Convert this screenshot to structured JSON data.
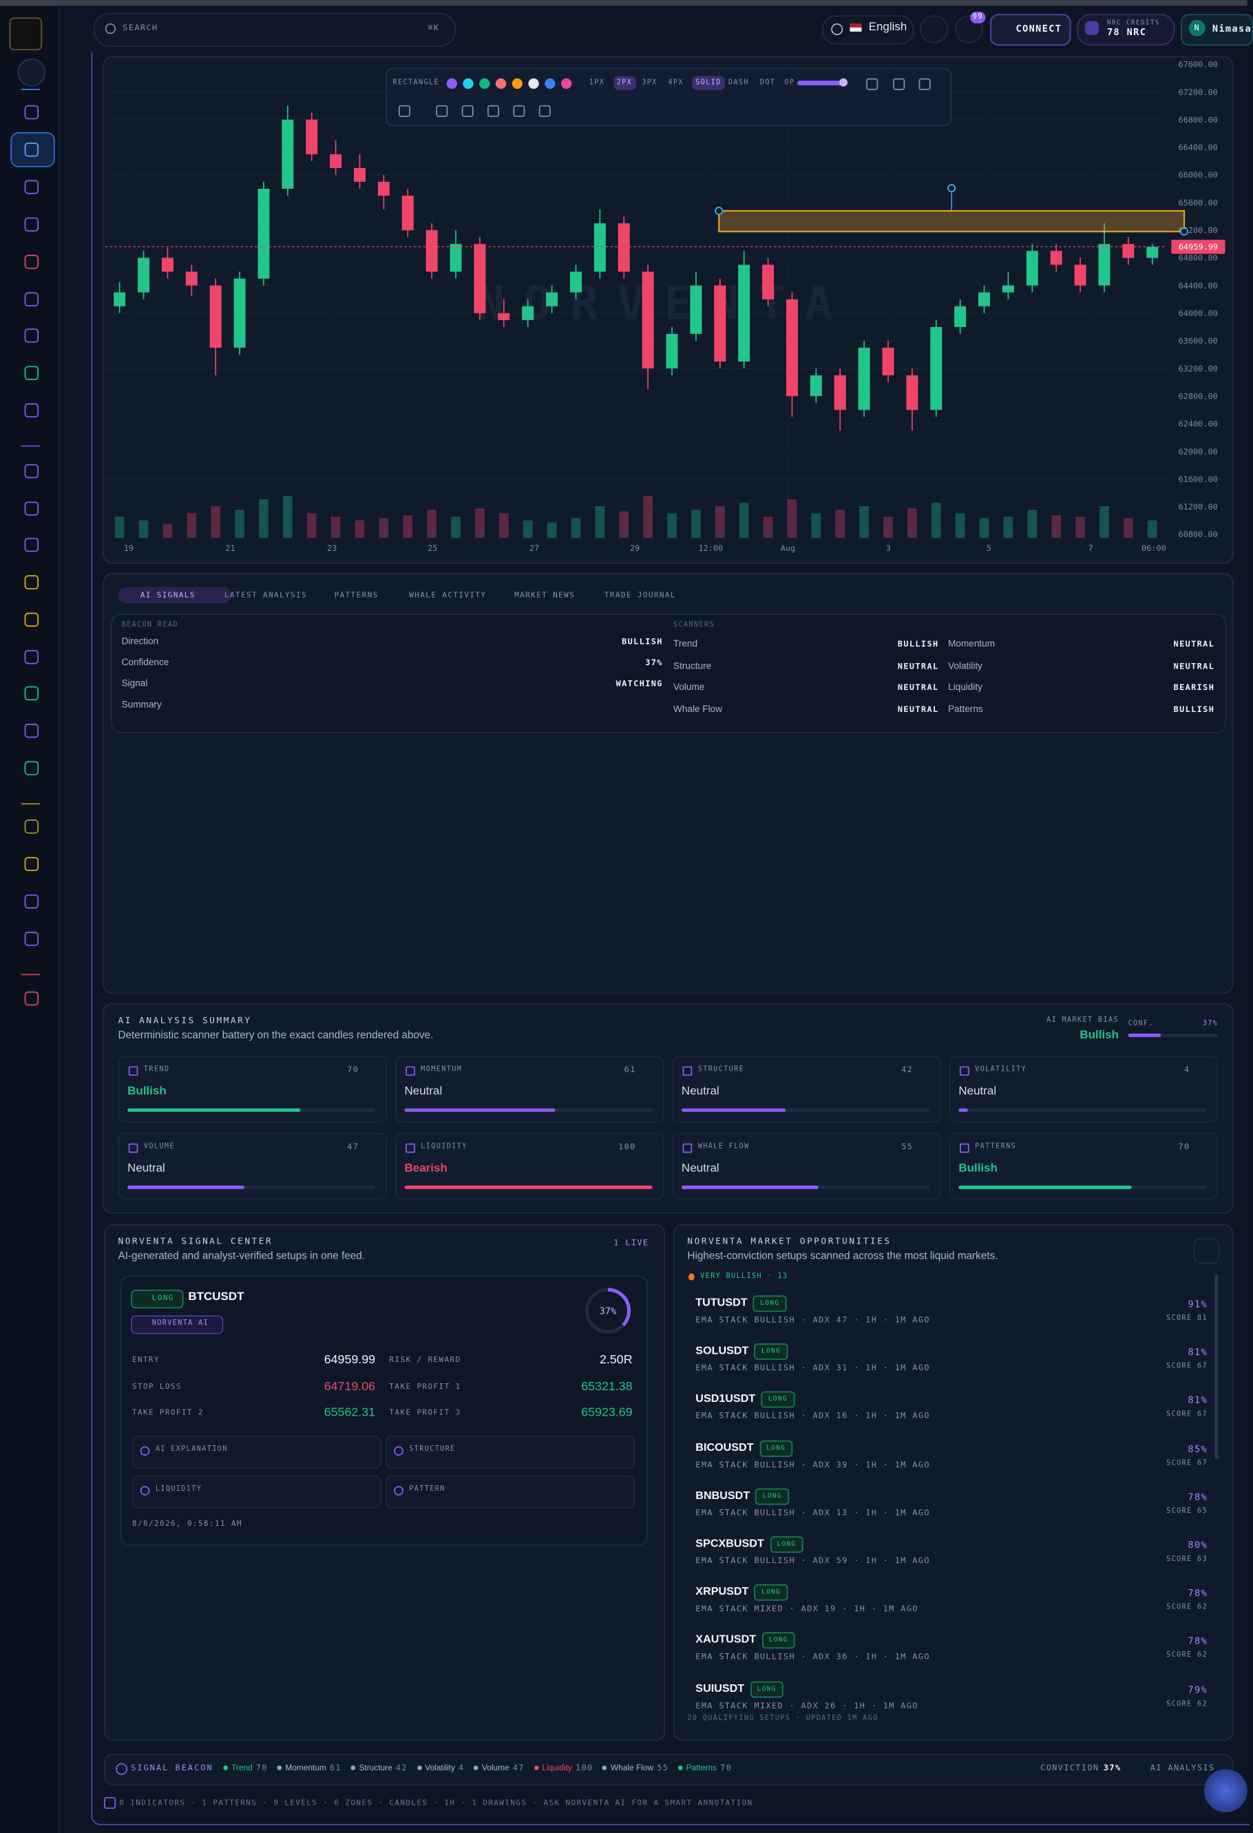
{
  "header": {
    "search": "SEARCH",
    "shortcut": "⌘K",
    "language": "English",
    "notifications": "99",
    "connect": "CONNECT",
    "credits_label": "NRC CREDITS",
    "credits": "78 NRC",
    "user_initial": "N",
    "user": "Nimasa"
  },
  "toolbar": {
    "tool": "RECTANGLE",
    "colors": [
      "#8b5cf6",
      "#22d3ee",
      "#10b981",
      "#f87171",
      "#f59e0b",
      "#e5e7eb",
      "#3b82f6",
      "#ec4899"
    ],
    "widths": [
      "1PX",
      "2PX",
      "3PX",
      "4PX"
    ],
    "styles": [
      "SOLID",
      "DASH",
      "DOT"
    ],
    "opacity": "OP"
  },
  "price_chart": {
    "type": "candlestick",
    "watermark": "NORVENTA",
    "yticks": [
      {
        "value": 67600,
        "label": "67600.00"
      },
      {
        "value": 67200,
        "label": "67200.00"
      },
      {
        "value": 66800,
        "label": "66800.00"
      },
      {
        "value": 66400,
        "label": "66400.00"
      },
      {
        "value": 66000,
        "label": "66000.00"
      },
      {
        "value": 65600,
        "label": "65600.00"
      },
      {
        "value": 65200,
        "label": "65200.00"
      },
      {
        "value": 64800,
        "label": "64800.00"
      },
      {
        "value": 64400,
        "label": "64400.00"
      },
      {
        "value": 64000,
        "label": "64000.00"
      },
      {
        "value": 63600,
        "label": "63600.00"
      },
      {
        "value": 63200,
        "label": "63200.00"
      },
      {
        "value": 62800,
        "label": "62800.00"
      },
      {
        "value": 62400,
        "label": "62400.00"
      },
      {
        "value": 62000,
        "label": "62000.00"
      },
      {
        "value": 61600,
        "label": "61600.00"
      },
      {
        "value": 61200,
        "label": "61200.00"
      },
      {
        "value": 60800,
        "label": "60800.00"
      }
    ],
    "ylim": [
      60800,
      67600
    ],
    "xlabels": [
      "19",
      "21",
      "23",
      "25",
      "27",
      "29",
      "12:00",
      "Aug",
      "3",
      "5",
      "7",
      "06:00"
    ],
    "up_color": "#22c58b",
    "down_color": "#f0456a",
    "candles": [
      [
        64100,
        64450,
        64000,
        64300
      ],
      [
        64300,
        64900,
        64200,
        64800
      ],
      [
        64800,
        64950,
        64500,
        64600
      ],
      [
        64600,
        64700,
        64250,
        64400
      ],
      [
        64400,
        64500,
        63100,
        63500
      ],
      [
        63500,
        64600,
        63400,
        64500
      ],
      [
        64500,
        65900,
        64400,
        65800
      ],
      [
        65800,
        67000,
        65700,
        66800
      ],
      [
        66800,
        66900,
        66200,
        66300
      ],
      [
        66300,
        66500,
        66000,
        66100
      ],
      [
        66100,
        66300,
        65800,
        65900
      ],
      [
        65900,
        66000,
        65500,
        65700
      ],
      [
        65700,
        65800,
        65100,
        65200
      ],
      [
        65200,
        65300,
        64500,
        64600
      ],
      [
        64600,
        65200,
        64500,
        65000
      ],
      [
        65000,
        65100,
        63900,
        64000
      ],
      [
        64000,
        64200,
        63800,
        63900
      ],
      [
        63900,
        64200,
        63800,
        64100
      ],
      [
        64100,
        64400,
        64000,
        64300
      ],
      [
        64300,
        64700,
        64200,
        64600
      ],
      [
        64600,
        65500,
        64500,
        65300
      ],
      [
        65300,
        65400,
        64500,
        64600
      ],
      [
        64600,
        64700,
        62900,
        63200
      ],
      [
        63200,
        63800,
        63100,
        63700
      ],
      [
        63700,
        64600,
        63600,
        64400
      ],
      [
        64400,
        64500,
        63200,
        63300
      ],
      [
        63300,
        64900,
        63200,
        64700
      ],
      [
        64700,
        64800,
        64100,
        64200
      ],
      [
        64200,
        64300,
        62500,
        62800
      ],
      [
        62800,
        63200,
        62700,
        63100
      ],
      [
        63100,
        63200,
        62300,
        62600
      ],
      [
        62600,
        63600,
        62500,
        63500
      ],
      [
        63500,
        63600,
        63000,
        63100
      ],
      [
        63100,
        63200,
        62300,
        62600
      ],
      [
        62600,
        63900,
        62500,
        63800
      ],
      [
        63800,
        64200,
        63700,
        64100
      ],
      [
        64100,
        64400,
        64000,
        64300
      ],
      [
        64300,
        64600,
        64200,
        64400
      ],
      [
        64400,
        65000,
        64300,
        64900
      ],
      [
        64900,
        65000,
        64600,
        64700
      ],
      [
        64700,
        64800,
        64300,
        64400
      ],
      [
        64400,
        65300,
        64300,
        65000
      ],
      [
        65000,
        65100,
        64700,
        64800
      ],
      [
        64800,
        65000,
        64700,
        64959.99
      ]
    ],
    "volumes": [
      30,
      25,
      20,
      35,
      45,
      40,
      55,
      60,
      35,
      30,
      25,
      28,
      32,
      40,
      30,
      42,
      35,
      25,
      22,
      28,
      45,
      38,
      60,
      35,
      40,
      45,
      50,
      30,
      55,
      35,
      40,
      45,
      30,
      42,
      50,
      35,
      28,
      30,
      40,
      32,
      30,
      45,
      28,
      25
    ],
    "drawing": {
      "top": 65480,
      "bottom": 65180,
      "color": "#f5a524"
    }
  },
  "tabs": [
    "AI SIGNALS",
    "LATEST ANALYSIS",
    "PATTERNS",
    "WHALE ACTIVITY",
    "MARKET NEWS",
    "TRADE JOURNAL"
  ],
  "beacon": {
    "title": "BEACON READ",
    "rows": [
      {
        "label": "Direction",
        "value": "BULLISH"
      },
      {
        "label": "Confidence",
        "value": "37%"
      },
      {
        "label": "Signal",
        "value": "WATCHING"
      },
      {
        "label": "Summary"
      }
    ]
  },
  "scanners": {
    "title": "SCANNERS",
    "rows": [
      {
        "label": "Trend",
        "value": "BULLISH"
      },
      {
        "label": "Momentum",
        "value": "NEUTRAL"
      },
      {
        "label": "Structure",
        "value": "NEUTRAL"
      },
      {
        "label": "Volatility",
        "value": "NEUTRAL"
      },
      {
        "label": "Volume",
        "value": "NEUTRAL"
      },
      {
        "label": "Liquidity",
        "value": "BEARISH"
      },
      {
        "label": "Whale Flow",
        "value": "NEUTRAL"
      },
      {
        "label": "Patterns",
        "value": "BULLISH"
      }
    ]
  },
  "summary": {
    "title": "AI ANALYSIS SUMMARY",
    "subtitle": "Deterministic scanner battery on the exact candles rendered above.",
    "bias_label": "AI MARKET BIAS",
    "bias": "Bullish",
    "conf_label": "CONF.",
    "conf": 37,
    "conf_label_value": "37%",
    "cards": [
      {
        "name": "TREND",
        "score": 70,
        "state": "Bullish",
        "color": "#22c58b"
      },
      {
        "name": "MOMENTUM",
        "score": 61,
        "state": "Neutral",
        "color": "#8b5cf6"
      },
      {
        "name": "STRUCTURE",
        "score": 42,
        "state": "Neutral",
        "color": "#8b5cf6"
      },
      {
        "name": "VOLATILITY",
        "score": 4,
        "state": "Neutral",
        "color": "#8b5cf6"
      },
      {
        "name": "VOLUME",
        "score": 47,
        "state": "Neutral",
        "color": "#8b5cf6"
      },
      {
        "name": "LIQUIDITY",
        "score": 100,
        "state": "Bearish",
        "color": "#f0456a"
      },
      {
        "name": "WHALE FLOW",
        "score": 55,
        "state": "Neutral",
        "color": "#8b5cf6"
      },
      {
        "name": "PATTERNS",
        "score": 70,
        "state": "Bullish",
        "color": "#22c58b"
      }
    ]
  },
  "signal_center": {
    "title": "NORVENTA SIGNAL CENTER",
    "subtitle": "AI-generated and analyst-verified setups in one feed.",
    "live": "1 LIVE",
    "side": "LONG",
    "symbol": "BTCUSDT",
    "source": "NORVENTA AI",
    "confidence": 37,
    "confidence_label": "37%",
    "fields": [
      {
        "label": "ENTRY",
        "value": "64959.99",
        "color": "#f1f5f9"
      },
      {
        "label": "RISK / REWARD",
        "value": "2.50R",
        "color": "#f1f5f9"
      },
      {
        "label": "STOP LOSS",
        "value": "64719.06",
        "color": "#f0456a"
      },
      {
        "label": "TAKE PROFIT 1",
        "value": "65321.38",
        "color": "#22c58b"
      },
      {
        "label": "TAKE PROFIT 2",
        "value": "65562.31",
        "color": "#22c58b"
      },
      {
        "label": "TAKE PROFIT 3",
        "value": "65923.69",
        "color": "#22c58b"
      }
    ],
    "buttons": [
      "AI EXPLANATION",
      "STRUCTURE",
      "LIQUIDITY",
      "PATTERN"
    ],
    "timestamp": "8/8/2026, 9:58:11 AM"
  },
  "opportunities": {
    "title": "NORVENTA MARKET OPPORTUNITIES",
    "subtitle": "Highest-conviction setups scanned across the most liquid markets.",
    "group": "VERY BULLISH · 13",
    "items": [
      {
        "symbol": "TUTUSDT",
        "side": "LONG",
        "detail": "EMA STACK BULLISH · ADX 47 · 1H · 1M AGO",
        "pct": "91%",
        "score": "SCORE 81"
      },
      {
        "symbol": "SOLUSDT",
        "side": "LONG",
        "detail": "EMA STACK BULLISH · ADX 31 · 1H · 1M AGO",
        "pct": "81%",
        "score": "SCORE 67"
      },
      {
        "symbol": "USD1USDT",
        "side": "LONG",
        "detail": "EMA STACK BULLISH · ADX 16 · 1H · 1M AGO",
        "pct": "81%",
        "score": "SCORE 67"
      },
      {
        "symbol": "BICOUSDT",
        "side": "LONG",
        "detail": "EMA STACK BULLISH · ADX 39 · 1H · 1M AGO",
        "pct": "85%",
        "score": "SCORE 67"
      },
      {
        "symbol": "BNBUSDT",
        "side": "LONG",
        "detail": "EMA STACK BULLISH · ADX 13 · 1H · 1M AGO",
        "pct": "78%",
        "score": "SCORE 65"
      },
      {
        "symbol": "SPCXBUSDT",
        "side": "LONG",
        "detail": "EMA STACK BULLISH · ADX 59 · 1H · 1M AGO",
        "pct": "80%",
        "score": "SCORE 63"
      },
      {
        "symbol": "XRPUSDT",
        "side": "LONG",
        "detail": "EMA STACK MIXED · ADX 19 · 1H · 1M AGO",
        "pct": "78%",
        "score": "SCORE 62"
      },
      {
        "symbol": "XAUTUSDT",
        "side": "LONG",
        "detail": "EMA STACK BULLISH · ADX 36 · 1H · 1M AGO",
        "pct": "78%",
        "score": "SCORE 62"
      },
      {
        "symbol": "SUIUSDT",
        "side": "LONG",
        "detail": "EMA STACK MIXED · ADX 26 · 1H · 1M AGO",
        "pct": "79%",
        "score": "SCORE 62"
      }
    ],
    "footer": "20 QUALIFYING SETUPS · UPDATED 1M AGO"
  },
  "signal_beacon": {
    "title": "SIGNAL BEACON",
    "items": [
      {
        "name": "Trend",
        "value": "70",
        "color": "#22c58b"
      },
      {
        "name": "Momentum",
        "value": "61",
        "color": "#9aa3b5"
      },
      {
        "name": "Structure",
        "value": "42",
        "color": "#9aa3b5"
      },
      {
        "name": "Volatility",
        "value": "4",
        "color": "#9aa3b5"
      },
      {
        "name": "Volume",
        "value": "47",
        "color": "#9aa3b5"
      },
      {
        "name": "Liquidity",
        "value": "100",
        "color": "#f0456a"
      },
      {
        "name": "Whale Flow",
        "value": "55",
        "color": "#9aa3b5"
      },
      {
        "name": "Patterns",
        "value": "70",
        "color": "#22c58b"
      }
    ],
    "conviction_label": "CONVICTION",
    "conviction": "37%",
    "ai_analysis": "AI ANALYSIS"
  },
  "status_line": "0 INDICATORS · 1 PATTERNS · 9 LEVELS · 6 ZONES · CANDLES · 1H · 1 DRAWINGS · ASK NORVENTA AI FOR A SMART ANNOTATION"
}
